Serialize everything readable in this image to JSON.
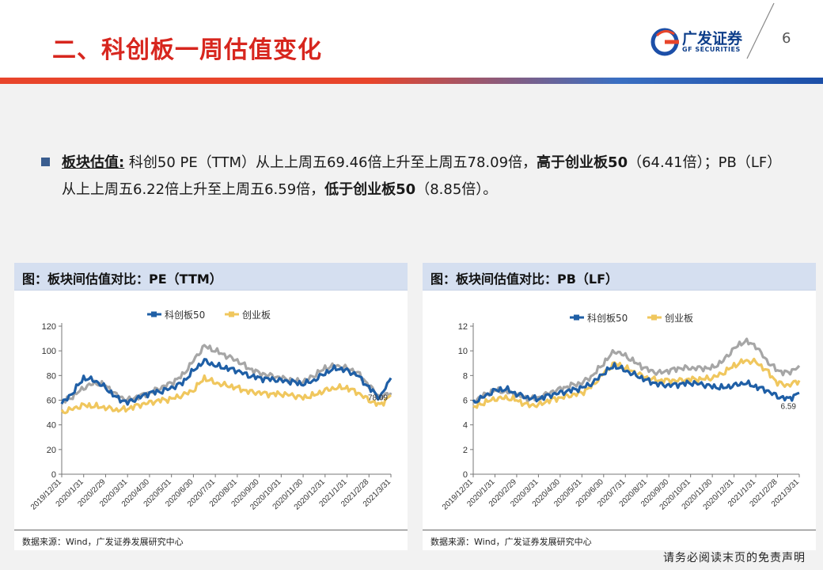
{
  "header": {
    "title": "二、科创板一周估值变化",
    "logo_cn": "广发证券",
    "logo_en": "GF SECURITIES",
    "page_number": "6"
  },
  "body": {
    "bullet_label": "板块估值:",
    "text_1": " 科创50 PE（TTM）从上上周五69.46倍上升至上周五78.09倍，",
    "bold_1": "高于创业板50",
    "text_2": "（64.41倍）；PB（LF）从上上周五6.22倍上升至上周五6.59倍，",
    "bold_2": "低于创业板50",
    "text_3": "（8.85倍）。"
  },
  "panels": [
    {
      "title": "图：板块间估值对比：PE（TTM）",
      "source": "数据来源：Wind，广发证券发展研究中心"
    },
    {
      "title": "图：板块间估值对比：PB（LF）",
      "source": "数据来源：Wind，广发证券发展研究中心"
    }
  ],
  "footer": {
    "disclaimer": "请务必阅读末页的免责声明"
  },
  "colors": {
    "kc50": "#1f5fa6",
    "cyb": "#f0c75e",
    "gray": "#a6a6a6",
    "title_red": "#d7261e"
  },
  "chart_data": [
    {
      "type": "line",
      "legend_position": "top",
      "ylim": [
        0,
        120
      ],
      "yticks": [
        0,
        20,
        40,
        60,
        80,
        100,
        120
      ],
      "x_tick_labels": [
        "2019/12/31",
        "2020/1/31",
        "2020/2/29",
        "2020/3/31",
        "2020/4/30",
        "2020/5/31",
        "2020/6/30",
        "2020/7/31",
        "2020/8/31",
        "2020/9/30",
        "2020/10/31",
        "2020/11/30",
        "2020/12/31",
        "2021/1/31",
        "2021/2/28",
        "2021/3/31"
      ],
      "x": [
        "2019/12/31",
        "2020/1/15",
        "2020/1/31",
        "2020/2/15",
        "2020/2/29",
        "2020/3/15",
        "2020/3/31",
        "2020/4/15",
        "2020/4/30",
        "2020/5/15",
        "2020/5/31",
        "2020/6/15",
        "2020/6/30",
        "2020/7/15",
        "2020/7/31",
        "2020/8/15",
        "2020/8/31",
        "2020/9/15",
        "2020/9/30",
        "2020/10/15",
        "2020/10/31",
        "2020/11/15",
        "2020/11/30",
        "2020/12/15",
        "2020/12/31",
        "2021/1/15",
        "2021/1/31",
        "2021/2/15",
        "2021/2/28",
        "2021/3/15",
        "2021/3/31"
      ],
      "series": [
        {
          "name": "科创板50",
          "color": "#1f5fa6",
          "values": [
            57,
            66,
            78,
            76,
            70,
            62,
            58,
            62,
            66,
            67,
            70,
            74,
            84,
            92,
            88,
            86,
            84,
            80,
            78,
            77,
            76,
            75,
            73,
            76,
            82,
            86,
            84,
            80,
            70,
            62,
            78
          ]
        },
        {
          "name": "创业板",
          "color": "#f0c75e",
          "values": [
            50,
            53,
            56,
            55,
            54,
            52,
            53,
            56,
            58,
            60,
            61,
            64,
            68,
            78,
            74,
            72,
            70,
            67,
            66,
            65,
            65,
            64,
            62,
            64,
            68,
            70,
            70,
            66,
            60,
            56,
            64
          ]
        },
        {
          "name": "",
          "color": "#a6a6a6",
          "values": [
            58,
            63,
            70,
            74,
            72,
            64,
            60,
            63,
            66,
            70,
            74,
            80,
            92,
            104,
            100,
            96,
            92,
            86,
            82,
            80,
            78,
            76,
            75,
            80,
            86,
            88,
            86,
            82,
            72,
            62,
            66
          ]
        }
      ],
      "annotation": "78.09"
    },
    {
      "type": "line",
      "legend_position": "top",
      "ylim": [
        0,
        12
      ],
      "yticks": [
        0,
        2,
        4,
        6,
        8,
        10,
        12
      ],
      "x_tick_labels": [
        "2019/12/31",
        "2020/1/31",
        "2020/2/29",
        "2020/3/31",
        "2020/4/30",
        "2020/5/31",
        "2020/6/30",
        "2020/7/31",
        "2020/8/31",
        "2020/9/30",
        "2020/10/31",
        "2020/11/30",
        "2020/12/31",
        "2021/1/31",
        "2021/2/28",
        "2021/3/31"
      ],
      "x": [
        "2019/12/31",
        "2020/1/15",
        "2020/1/31",
        "2020/2/15",
        "2020/2/29",
        "2020/3/15",
        "2020/3/31",
        "2020/4/15",
        "2020/4/30",
        "2020/5/15",
        "2020/5/31",
        "2020/6/15",
        "2020/6/30",
        "2020/7/15",
        "2020/7/31",
        "2020/8/15",
        "2020/8/31",
        "2020/9/15",
        "2020/9/30",
        "2020/10/15",
        "2020/10/31",
        "2020/11/15",
        "2020/11/30",
        "2020/12/15",
        "2020/12/31",
        "2021/1/15",
        "2021/1/31",
        "2021/2/15",
        "2021/2/28",
        "2021/3/15",
        "2021/3/31"
      ],
      "series": [
        {
          "name": "科创板50",
          "color": "#1f5fa6",
          "values": [
            5.8,
            6.3,
            6.8,
            6.9,
            6.5,
            6.2,
            6.1,
            6.4,
            6.6,
            6.8,
            7.0,
            7.4,
            8.2,
            8.8,
            8.4,
            8.0,
            7.6,
            7.3,
            7.2,
            7.3,
            7.4,
            7.3,
            7.1,
            7.0,
            7.2,
            7.4,
            7.1,
            6.8,
            6.3,
            6.1,
            6.59
          ]
        },
        {
          "name": "创业板",
          "color": "#f0c75e",
          "values": [
            5.4,
            5.8,
            6.1,
            6.2,
            6.0,
            5.6,
            5.6,
            6.0,
            6.2,
            6.4,
            6.6,
            7.2,
            8.2,
            9.0,
            8.6,
            8.2,
            7.8,
            7.6,
            7.6,
            7.6,
            7.7,
            7.7,
            7.8,
            8.2,
            8.8,
            9.2,
            9.1,
            8.4,
            7.4,
            7.2,
            7.6
          ]
        },
        {
          "name": "",
          "color": "#a6a6a6",
          "values": [
            5.9,
            6.4,
            6.8,
            6.7,
            6.4,
            6.1,
            6.2,
            6.6,
            6.9,
            7.2,
            7.4,
            8.0,
            9.0,
            10.0,
            9.6,
            9.0,
            8.5,
            8.2,
            8.4,
            8.6,
            8.6,
            8.6,
            8.6,
            9.2,
            10.2,
            10.8,
            10.4,
            9.2,
            8.4,
            8.2,
            8.8
          ]
        }
      ],
      "annotation": "6.59"
    }
  ]
}
